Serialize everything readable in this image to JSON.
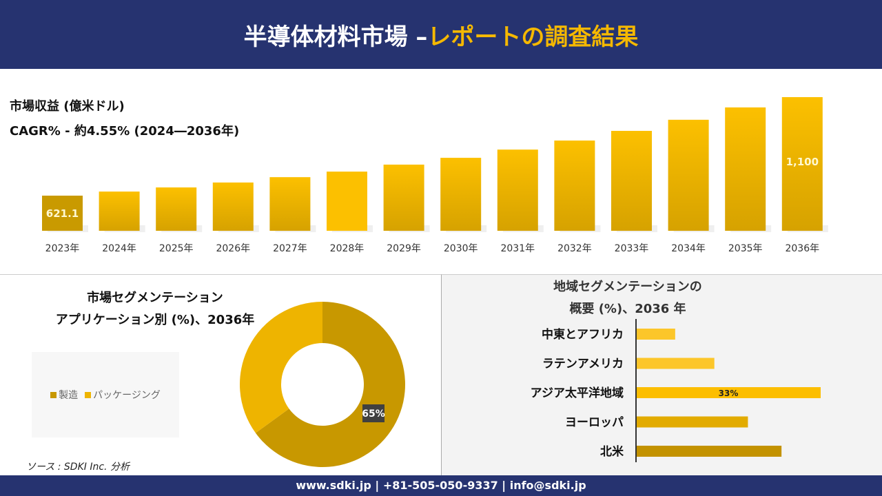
{
  "header": {
    "title_white": "半導体材料市場 –",
    "title_yellow": "レポートの調査結果"
  },
  "revenue": {
    "label": "市場収益 (億米ドル)",
    "cagr": "CAGR% - 約4.55% (2024―2036年)"
  },
  "chart_data": [
    {
      "type": "bar",
      "categories": [
        "2023年",
        "2024年",
        "2025年",
        "2026年",
        "2027年",
        "2028年",
        "2029年",
        "2030年",
        "2031年",
        "2032年",
        "2033年",
        "2034年",
        "2035年",
        "2036年"
      ],
      "values": [
        621.1,
        641,
        661,
        685,
        711,
        738,
        772,
        805,
        845,
        889,
        936,
        990,
        1050,
        1100
      ],
      "data_labels": {
        "0": "621.1",
        "13": "1,100"
      },
      "ylabel": "",
      "xlabel": ""
    },
    {
      "type": "pie",
      "title": "市場セグメンテーション アプリケーション別 (%)、2036年",
      "title_line1": "市場セグメンテーション",
      "title_line2": "アプリケーション別 (%)、2036年",
      "series": [
        {
          "name": "製造",
          "value": 65,
          "color": "#c89800"
        },
        {
          "name": "パッケージング",
          "value": 35,
          "color": "#eeb400"
        }
      ],
      "data_label": "65%",
      "legend": "left"
    },
    {
      "type": "bar",
      "orientation": "horizontal",
      "title_line1": "地域セグメンテーションの",
      "title_line2": "概要 (%)、2036 年",
      "categories": [
        "中東とアフリカ",
        "ラテンアメリカ",
        "アジア太平洋地域",
        "ヨーロッパ",
        "北米"
      ],
      "values": [
        7,
        14,
        33,
        20,
        26
      ],
      "data_label": "33%",
      "colors": [
        "#fcc62a",
        "#fcc62a",
        "#fcbe00",
        "#e2ab00",
        "#c39200"
      ]
    }
  ],
  "source": "ソース : SDKI Inc. 分析",
  "footer": "www.sdki.jp | +81-505-050-9337 | info@sdki.jp"
}
